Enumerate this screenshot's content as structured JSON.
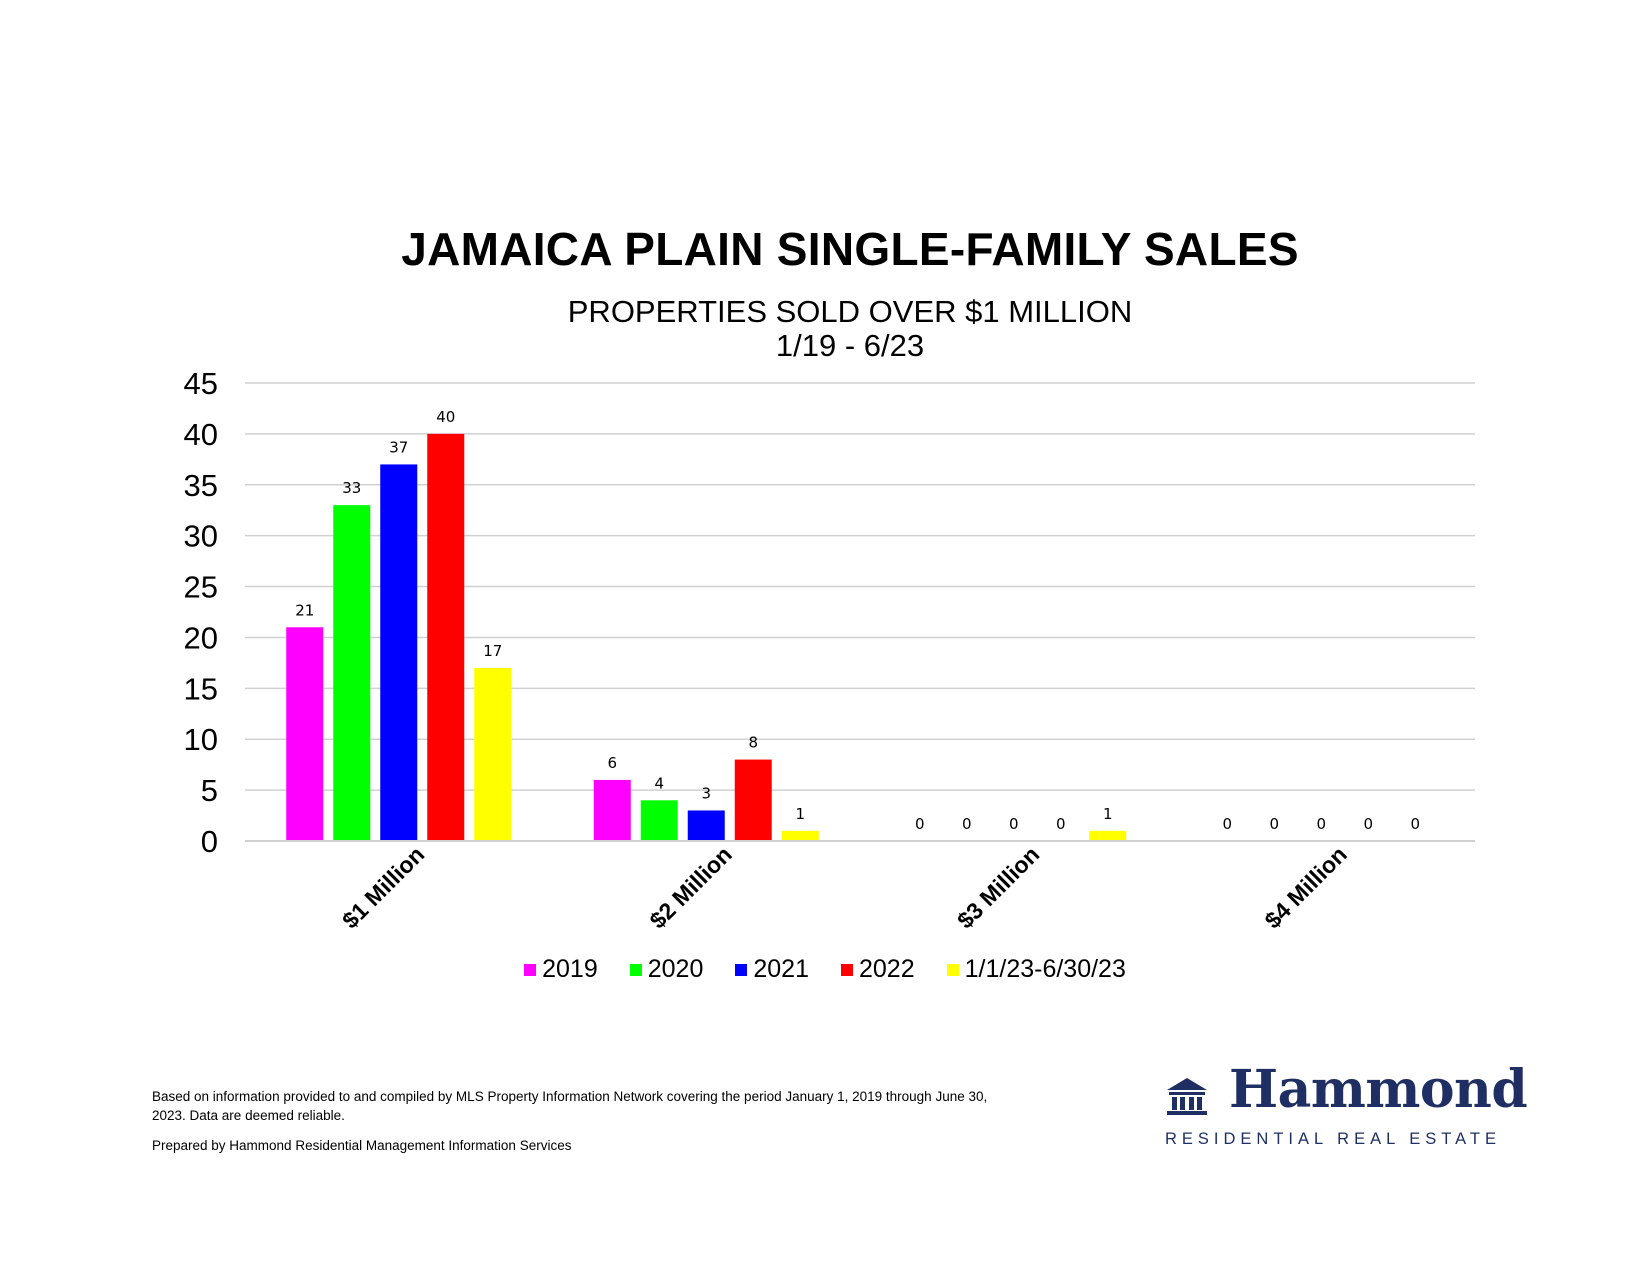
{
  "chart_data": {
    "type": "bar",
    "title": "JAMAICA PLAIN SINGLE-FAMILY SALES",
    "subtitle": "PROPERTIES SOLD OVER $1 MILLION",
    "period": "1/19 - 6/23",
    "categories": [
      "$1 Million",
      "$2 Million",
      "$3 Million",
      "$4 Million"
    ],
    "series": [
      {
        "name": "2019",
        "color": "#ff00ff",
        "values": [
          21,
          6,
          0,
          0
        ]
      },
      {
        "name": "2020",
        "color": "#00ff00",
        "values": [
          33,
          4,
          0,
          0
        ]
      },
      {
        "name": "2021",
        "color": "#0000ff",
        "values": [
          37,
          3,
          0,
          0
        ]
      },
      {
        "name": "2022",
        "color": "#ff0000",
        "values": [
          40,
          8,
          0,
          0
        ]
      },
      {
        "name": "1/1/23-6/30/23",
        "color": "#ffff00",
        "values": [
          17,
          1,
          1,
          0
        ]
      }
    ],
    "ylim": [
      0,
      45
    ],
    "yticks": [
      0,
      5,
      10,
      15,
      20,
      25,
      30,
      35,
      40,
      45
    ],
    "grid": true,
    "legend": "bottom"
  },
  "footnote": "Based on information provided to and compiled by MLS Property Information Network covering the period January 1, 2019 through June 30, 2023. Data are deemed reliable.",
  "prepared_by": "Prepared by Hammond Residential Management Information Services",
  "logo": {
    "name": "Hammond",
    "tagline": "RESIDENTIAL REAL ESTATE",
    "icon": "building-icon",
    "color": "#1f2f63"
  }
}
